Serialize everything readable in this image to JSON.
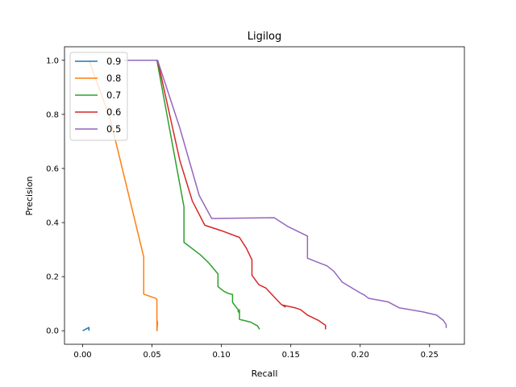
{
  "chart_data": {
    "type": "line",
    "title": "Ligilog",
    "xlabel": "Recall",
    "ylabel": "Precision",
    "xlim": [
      -0.0131,
      0.2751
    ],
    "ylim": [
      -0.05,
      1.05
    ],
    "xticks": [
      0.0,
      0.05,
      0.1,
      0.15,
      0.2,
      0.25
    ],
    "xtick_labels": [
      "0.00",
      "0.05",
      "0.10",
      "0.15",
      "0.20",
      "0.25"
    ],
    "yticks": [
      0.0,
      0.2,
      0.4,
      0.6,
      0.8,
      1.0
    ],
    "ytick_labels": [
      "0.0",
      "0.2",
      "0.4",
      "0.6",
      "0.8",
      "1.0"
    ],
    "grid": false,
    "legend_position": "upper-left",
    "series": [
      {
        "name": "0.9",
        "color": "#1f77b4",
        "x": [
          0.0,
          0.0045,
          0.0045,
          0.0045
        ],
        "y": [
          0.0,
          0.012,
          0.01,
          0.0
        ]
      },
      {
        "name": "0.8",
        "color": "#ff7f0e",
        "x": [
          0.0045,
          0.02,
          0.044,
          0.044,
          0.0465,
          0.0525,
          0.0535,
          0.0535,
          0.054,
          0.0535
        ],
        "y": [
          1.0,
          0.78,
          0.273,
          0.135,
          0.131,
          0.12,
          0.115,
          0.0,
          0.03,
          0.04
        ]
      },
      {
        "name": "0.7",
        "color": "#2ca02c",
        "x": [
          0.03,
          0.0535,
          0.073,
          0.073,
          0.085,
          0.091,
          0.0975,
          0.0975,
          0.102,
          0.105,
          0.108,
          0.108,
          0.112,
          0.112,
          0.113,
          0.113,
          0.113,
          0.121,
          0.126,
          0.1275
        ],
        "y": [
          1.0,
          1.0,
          0.458,
          0.327,
          0.28,
          0.25,
          0.21,
          0.163,
          0.145,
          0.138,
          0.134,
          0.105,
          0.078,
          0.072,
          0.065,
          0.078,
          0.042,
          0.032,
          0.018,
          0.005
        ]
      },
      {
        "name": "0.6",
        "color": "#d62728",
        "x": [
          0.03,
          0.054,
          0.07,
          0.079,
          0.088,
          0.1,
          0.113,
          0.118,
          0.122,
          0.122,
          0.127,
          0.132,
          0.143,
          0.146,
          0.144,
          0.153,
          0.157,
          0.162,
          0.17,
          0.175,
          0.175
        ],
        "y": [
          1.0,
          1.0,
          0.63,
          0.48,
          0.39,
          0.37,
          0.345,
          0.305,
          0.262,
          0.205,
          0.17,
          0.158,
          0.098,
          0.088,
          0.095,
          0.085,
          0.078,
          0.058,
          0.038,
          0.02,
          0.005
        ]
      },
      {
        "name": "0.5",
        "color": "#9467bd",
        "x": [
          0.03,
          0.054,
          0.07,
          0.084,
          0.093,
          0.138,
          0.148,
          0.162,
          0.162,
          0.176,
          0.181,
          0.187,
          0.2,
          0.203,
          0.206,
          0.22,
          0.228,
          0.245,
          0.255,
          0.26,
          0.262,
          0.262
        ],
        "y": [
          1.0,
          1.0,
          0.75,
          0.5,
          0.415,
          0.418,
          0.385,
          0.35,
          0.268,
          0.24,
          0.22,
          0.18,
          0.14,
          0.132,
          0.12,
          0.107,
          0.085,
          0.07,
          0.058,
          0.038,
          0.022,
          0.01
        ]
      }
    ]
  }
}
